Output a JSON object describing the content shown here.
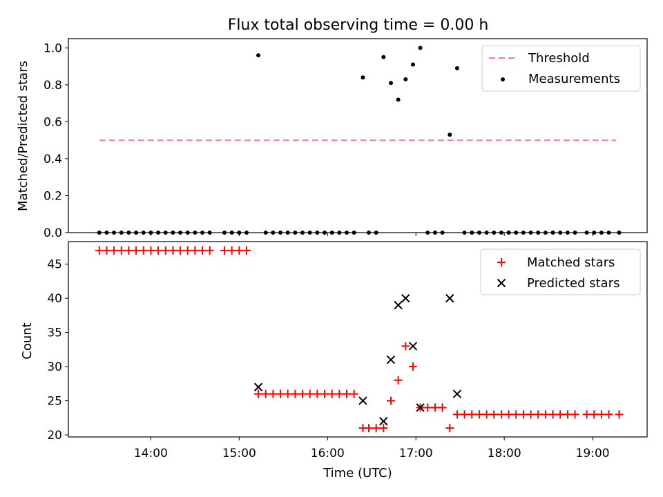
{
  "figure_title": "Flux total observing time = 0.00 h",
  "chart_data": [
    {
      "type": "scatter",
      "ylabel": "Matched/Predicted stars",
      "ylim": [
        0,
        1.05
      ],
      "yticks": [
        "0.0",
        "0.2",
        "0.4",
        "0.6",
        "0.8",
        "1.0"
      ],
      "threshold": {
        "name": "Threshold",
        "value": 0.5,
        "x_range": [
          "13:25",
          "19:16"
        ],
        "color": "#ff7f7f"
      },
      "series": [
        {
          "name": "Measurements",
          "color": "#000000",
          "points": [
            [
              "13:25",
              0
            ],
            [
              "13:30",
              0
            ],
            [
              "13:35",
              0
            ],
            [
              "13:40",
              0
            ],
            [
              "13:45",
              0
            ],
            [
              "13:50",
              0
            ],
            [
              "13:55",
              0
            ],
            [
              "14:00",
              0
            ],
            [
              "14:05",
              0
            ],
            [
              "14:10",
              0
            ],
            [
              "14:15",
              0
            ],
            [
              "14:20",
              0
            ],
            [
              "14:25",
              0
            ],
            [
              "14:30",
              0
            ],
            [
              "14:35",
              0
            ],
            [
              "14:40",
              0
            ],
            [
              "14:50",
              0
            ],
            [
              "14:55",
              0
            ],
            [
              "15:00",
              0
            ],
            [
              "15:05",
              0
            ],
            [
              "15:13",
              0.96
            ],
            [
              "15:18",
              0
            ],
            [
              "15:23",
              0
            ],
            [
              "15:28",
              0
            ],
            [
              "15:33",
              0
            ],
            [
              "15:38",
              0
            ],
            [
              "15:43",
              0
            ],
            [
              "15:48",
              0
            ],
            [
              "15:53",
              0
            ],
            [
              "15:58",
              0
            ],
            [
              "16:03",
              0
            ],
            [
              "16:08",
              0
            ],
            [
              "16:13",
              0
            ],
            [
              "16:18",
              0
            ],
            [
              "16:24",
              0.84
            ],
            [
              "16:28",
              0
            ],
            [
              "16:33",
              0
            ],
            [
              "16:38",
              0.95
            ],
            [
              "16:43",
              0.81
            ],
            [
              "16:48",
              0.72
            ],
            [
              "16:53",
              0.83
            ],
            [
              "16:58",
              0.91
            ],
            [
              "17:03",
              1.0
            ],
            [
              "17:08",
              0
            ],
            [
              "17:13",
              0
            ],
            [
              "17:18",
              0
            ],
            [
              "17:23",
              0.53
            ],
            [
              "17:28",
              0.89
            ],
            [
              "17:33",
              0
            ],
            [
              "17:38",
              0
            ],
            [
              "17:43",
              0
            ],
            [
              "17:48",
              0
            ],
            [
              "17:53",
              0
            ],
            [
              "17:58",
              0
            ],
            [
              "18:03",
              0
            ],
            [
              "18:08",
              0
            ],
            [
              "18:13",
              0
            ],
            [
              "18:18",
              0
            ],
            [
              "18:23",
              0
            ],
            [
              "18:28",
              0
            ],
            [
              "18:33",
              0
            ],
            [
              "18:38",
              0
            ],
            [
              "18:43",
              0
            ],
            [
              "18:48",
              0
            ],
            [
              "18:56",
              0
            ],
            [
              "19:01",
              0
            ],
            [
              "19:06",
              0
            ],
            [
              "19:11",
              0
            ],
            [
              "19:18",
              0
            ]
          ]
        }
      ],
      "legend": {
        "position": "top-right",
        "entries": [
          "Threshold",
          "Measurements"
        ]
      }
    },
    {
      "type": "scatter",
      "xlabel": "Time (UTC)",
      "ylabel": "Count",
      "ylim": [
        19.7,
        48.3
      ],
      "xlim": [
        "13:04",
        "19:37"
      ],
      "xticks": [
        "14:00",
        "15:00",
        "16:00",
        "17:00",
        "18:00",
        "19:00"
      ],
      "yticks": [
        "20",
        "25",
        "30",
        "35",
        "40",
        "45"
      ],
      "series": [
        {
          "name": "Matched stars",
          "marker": "plus",
          "color": "#ff0000",
          "points": [
            [
              "13:25",
              47
            ],
            [
              "13:30",
              47
            ],
            [
              "13:35",
              47
            ],
            [
              "13:40",
              47
            ],
            [
              "13:45",
              47
            ],
            [
              "13:50",
              47
            ],
            [
              "13:55",
              47
            ],
            [
              "14:00",
              47
            ],
            [
              "14:05",
              47
            ],
            [
              "14:10",
              47
            ],
            [
              "14:15",
              47
            ],
            [
              "14:20",
              47
            ],
            [
              "14:25",
              47
            ],
            [
              "14:30",
              47
            ],
            [
              "14:35",
              47
            ],
            [
              "14:40",
              47
            ],
            [
              "14:50",
              47
            ],
            [
              "14:55",
              47
            ],
            [
              "15:00",
              47
            ],
            [
              "15:05",
              47
            ],
            [
              "15:13",
              26
            ],
            [
              "15:18",
              26
            ],
            [
              "15:23",
              26
            ],
            [
              "15:28",
              26
            ],
            [
              "15:33",
              26
            ],
            [
              "15:38",
              26
            ],
            [
              "15:43",
              26
            ],
            [
              "15:48",
              26
            ],
            [
              "15:53",
              26
            ],
            [
              "15:58",
              26
            ],
            [
              "16:03",
              26
            ],
            [
              "16:08",
              26
            ],
            [
              "16:13",
              26
            ],
            [
              "16:18",
              26
            ],
            [
              "16:24",
              21
            ],
            [
              "16:28",
              21
            ],
            [
              "16:33",
              21
            ],
            [
              "16:38",
              21
            ],
            [
              "16:43",
              25
            ],
            [
              "16:48",
              28
            ],
            [
              "16:53",
              33
            ],
            [
              "16:58",
              30
            ],
            [
              "17:03",
              24
            ],
            [
              "17:08",
              24
            ],
            [
              "17:13",
              24
            ],
            [
              "17:18",
              24
            ],
            [
              "17:23",
              21
            ],
            [
              "17:28",
              23
            ],
            [
              "17:33",
              23
            ],
            [
              "17:38",
              23
            ],
            [
              "17:43",
              23
            ],
            [
              "17:48",
              23
            ],
            [
              "17:53",
              23
            ],
            [
              "17:58",
              23
            ],
            [
              "18:03",
              23
            ],
            [
              "18:08",
              23
            ],
            [
              "18:13",
              23
            ],
            [
              "18:18",
              23
            ],
            [
              "18:23",
              23
            ],
            [
              "18:28",
              23
            ],
            [
              "18:33",
              23
            ],
            [
              "18:38",
              23
            ],
            [
              "18:43",
              23
            ],
            [
              "18:48",
              23
            ],
            [
              "18:56",
              23
            ],
            [
              "19:01",
              23
            ],
            [
              "19:06",
              23
            ],
            [
              "19:11",
              23
            ],
            [
              "19:18",
              23
            ]
          ]
        },
        {
          "name": "Predicted stars",
          "marker": "x",
          "color": "#000000",
          "points": [
            [
              "15:13",
              27
            ],
            [
              "16:24",
              25
            ],
            [
              "16:38",
              22
            ],
            [
              "16:43",
              31
            ],
            [
              "16:48",
              39
            ],
            [
              "16:53",
              40
            ],
            [
              "16:58",
              33
            ],
            [
              "17:03",
              24
            ],
            [
              "17:23",
              40
            ],
            [
              "17:28",
              26
            ]
          ]
        }
      ],
      "legend": {
        "position": "top-right",
        "entries": [
          "Matched stars",
          "Predicted stars"
        ]
      }
    }
  ]
}
